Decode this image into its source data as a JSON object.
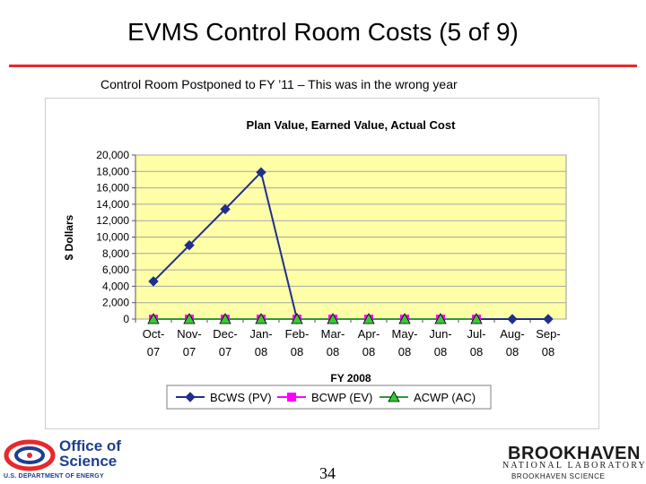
{
  "slide": {
    "title": "EVMS Control Room Costs (5 of 9)",
    "subtitle": "Control Room Postponed to FY ’11 – This was in the wrong year",
    "page_number": "34"
  },
  "logos": {
    "doe": {
      "line1": "Office of",
      "line2": "Science",
      "line3": "U.S. DEPARTMENT OF ENERGY"
    },
    "bnl": {
      "line1": "BROOKHAVEN",
      "line2": "NATIONAL LABORATORY",
      "line3": "BROOKHAVEN SCIENCE"
    }
  },
  "colors": {
    "title_rule": "#e8282b",
    "plot_background": "#ffffa8",
    "bcws": "#1f2f8c",
    "bcwp": "#ff00ff",
    "acwp": "#2e9a3c"
  },
  "chart_data": {
    "type": "line",
    "title": "Plan Value, Earned Value, Actual Cost",
    "xlabel": "FY 2008",
    "ylabel": "$ Dollars",
    "ylim": [
      0,
      20000
    ],
    "yticks": [
      "20,000",
      "18,000",
      "16,000",
      "14,000",
      "12,000",
      "10,000",
      "8,000",
      "6,000",
      "4,000",
      "2,000",
      "0"
    ],
    "ytick_values": [
      20000,
      18000,
      16000,
      14000,
      12000,
      10000,
      8000,
      6000,
      4000,
      2000,
      0
    ],
    "categories": [
      [
        "Oct-",
        "07"
      ],
      [
        "Nov-",
        "07"
      ],
      [
        "Dec-",
        "07"
      ],
      [
        "Jan-",
        "08"
      ],
      [
        "Feb-",
        "08"
      ],
      [
        "Mar-",
        "08"
      ],
      [
        "Apr-",
        "08"
      ],
      [
        "May-",
        "08"
      ],
      [
        "Jun-",
        "08"
      ],
      [
        "Jul-",
        "08"
      ],
      [
        "Aug-",
        "08"
      ],
      [
        "Sep-",
        "08"
      ]
    ],
    "grid": true,
    "legend_position": "bottom",
    "series": [
      {
        "name": "BCWS (PV)",
        "marker": "diamond",
        "color": "#1f2f8c",
        "values": [
          4600,
          9000,
          13400,
          17900,
          0,
          0,
          0,
          0,
          0,
          0,
          0,
          0
        ]
      },
      {
        "name": "BCWP (EV)",
        "marker": "square",
        "color": "#ff00ff",
        "values": [
          0,
          0,
          0,
          0,
          0,
          0,
          0,
          0,
          0,
          0,
          null,
          null
        ]
      },
      {
        "name": "ACWP (AC)",
        "marker": "triangle",
        "color": "#2e9a3c",
        "values": [
          0,
          0,
          0,
          0,
          0,
          0,
          0,
          0,
          0,
          0,
          null,
          null
        ]
      }
    ]
  }
}
